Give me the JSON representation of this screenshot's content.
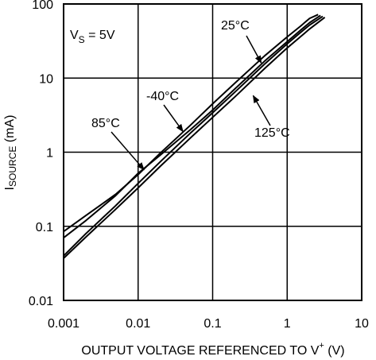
{
  "chart_data": {
    "type": "line",
    "x_scale": "log",
    "y_scale": "log",
    "xlim": [
      0.001,
      10
    ],
    "ylim": [
      0.01,
      100
    ],
    "grid": true,
    "x_ticks": [
      "0.001",
      "0.01",
      "0.1",
      "1",
      "10"
    ],
    "y_ticks": [
      "0.01",
      "0.1",
      "1",
      "10",
      "100"
    ],
    "xlabel": {
      "main": "OUTPUT VOLTAGE REFERENCED TO V",
      "sup": "+",
      "unit": " (V)"
    },
    "ylabel": {
      "main": "I",
      "sub": "SOURCE",
      "unit": " (mA)"
    },
    "condition": {
      "main": "V",
      "sub": "S",
      "rest": " = 5V"
    },
    "series": [
      {
        "name": "-40°C",
        "points": [
          [
            0.001,
            0.085
          ],
          [
            0.002,
            0.14
          ],
          [
            0.005,
            0.27
          ],
          [
            0.01,
            0.5
          ],
          [
            0.02,
            0.98
          ],
          [
            0.05,
            2.3
          ],
          [
            0.1,
            4.5
          ],
          [
            0.2,
            8.6
          ],
          [
            0.5,
            20
          ],
          [
            1,
            36
          ],
          [
            1.5,
            50
          ],
          [
            2,
            64
          ],
          [
            2.6,
            72
          ]
        ]
      },
      {
        "name": "85°C",
        "points": [
          [
            0.001,
            0.07
          ],
          [
            0.002,
            0.12
          ],
          [
            0.005,
            0.26
          ],
          [
            0.01,
            0.52
          ],
          [
            0.02,
            0.92
          ],
          [
            0.05,
            2.0
          ],
          [
            0.1,
            3.7
          ],
          [
            0.2,
            7.2
          ],
          [
            0.5,
            17
          ],
          [
            1,
            31
          ],
          [
            1.5,
            44
          ],
          [
            2,
            56
          ],
          [
            2.8,
            70
          ]
        ]
      },
      {
        "name": "25°C",
        "points": [
          [
            0.001,
            0.04
          ],
          [
            0.002,
            0.08
          ],
          [
            0.005,
            0.19
          ],
          [
            0.01,
            0.38
          ],
          [
            0.02,
            0.75
          ],
          [
            0.05,
            1.8
          ],
          [
            0.1,
            3.4
          ],
          [
            0.2,
            6.5
          ],
          [
            0.5,
            15.5
          ],
          [
            1,
            29
          ],
          [
            1.5,
            41
          ],
          [
            2,
            52
          ],
          [
            3,
            68
          ]
        ]
      },
      {
        "name": "125°C",
        "points": [
          [
            0.001,
            0.037
          ],
          [
            0.002,
            0.072
          ],
          [
            0.005,
            0.17
          ],
          [
            0.01,
            0.33
          ],
          [
            0.02,
            0.65
          ],
          [
            0.05,
            1.55
          ],
          [
            0.1,
            2.95
          ],
          [
            0.2,
            5.6
          ],
          [
            0.5,
            13.5
          ],
          [
            1,
            25.5
          ],
          [
            1.5,
            36
          ],
          [
            2,
            46
          ],
          [
            3.2,
            66
          ]
        ]
      }
    ],
    "annotations": [
      {
        "text": "25°C",
        "target": [
          0.45,
          16
        ]
      },
      {
        "text": "-40°C",
        "target": [
          0.04,
          1.9
        ]
      },
      {
        "text": "85°C",
        "target": [
          0.012,
          0.58
        ]
      },
      {
        "text": "125°C",
        "target": [
          0.35,
          5.8
        ]
      }
    ]
  }
}
